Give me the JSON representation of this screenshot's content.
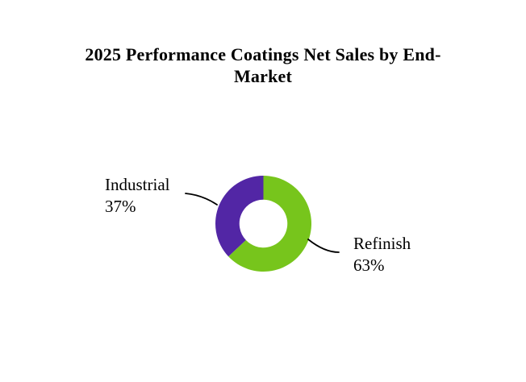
{
  "page": {
    "title_line1": "2025 Performance Coatings Net Sales by End-",
    "title_line2": "Market"
  },
  "callouts": {
    "industrial": {
      "name": "Industrial",
      "pct_label": "37%"
    },
    "refinish": {
      "name": "Refinish",
      "pct_label": "63%"
    }
  },
  "chart_data": {
    "type": "pie",
    "subtype": "donut",
    "title": "2025 Performance Coatings Net Sales by End-Market",
    "labels": [
      "Refinish",
      "Industrial"
    ],
    "values": [
      63,
      37
    ],
    "unit": "%",
    "colors": [
      "#77C51C",
      "#5226A5"
    ],
    "start_angle_deg": 0,
    "direction": "clockwise",
    "hole_ratio": 0.5,
    "legend_position": "none",
    "background": "#ffffff",
    "data_labels": [
      {
        "text": "Refinish 63%",
        "position": "outside-right",
        "leader_line": true
      },
      {
        "text": "Industrial 37%",
        "position": "outside-left",
        "leader_line": true
      }
    ]
  }
}
